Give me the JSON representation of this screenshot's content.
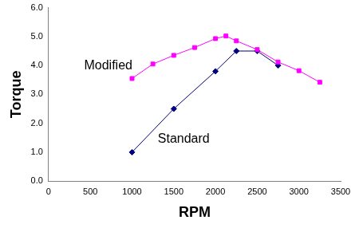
{
  "chart_data": {
    "type": "line",
    "x_label": "RPM",
    "y_label": "Torque",
    "xlim": [
      0,
      3500
    ],
    "xticks": [
      0,
      500,
      1000,
      1500,
      2000,
      2500,
      3000,
      3500
    ],
    "ylim": [
      0,
      6
    ],
    "yticks": [
      {
        "value": 0,
        "label": "0.0"
      },
      {
        "value": 1,
        "label": "1.0"
      },
      {
        "value": 2,
        "label": "2.0"
      },
      {
        "value": 3,
        "label": "3.0"
      },
      {
        "value": 4,
        "label": "4.0"
      },
      {
        "value": 5,
        "label": "5.0"
      },
      {
        "value": 6,
        "label": "6.0"
      }
    ],
    "grid": false,
    "series": [
      {
        "name": "Modified",
        "color": "#ff00ff",
        "marker": "square",
        "x": [
          1000,
          1250,
          1500,
          1750,
          2000,
          2125,
          2250,
          2500,
          2750,
          3000,
          3250
        ],
        "values": [
          3.55,
          4.05,
          4.35,
          4.62,
          4.93,
          5.02,
          4.85,
          4.55,
          4.12,
          3.82,
          3.42
        ]
      },
      {
        "name": "Standard",
        "color": "#000080",
        "marker": "diamond",
        "x": [
          1000,
          1500,
          2000,
          2250,
          2500,
          2750
        ],
        "values": [
          1.0,
          2.5,
          3.8,
          4.5,
          4.5,
          4.0
        ]
      }
    ]
  }
}
